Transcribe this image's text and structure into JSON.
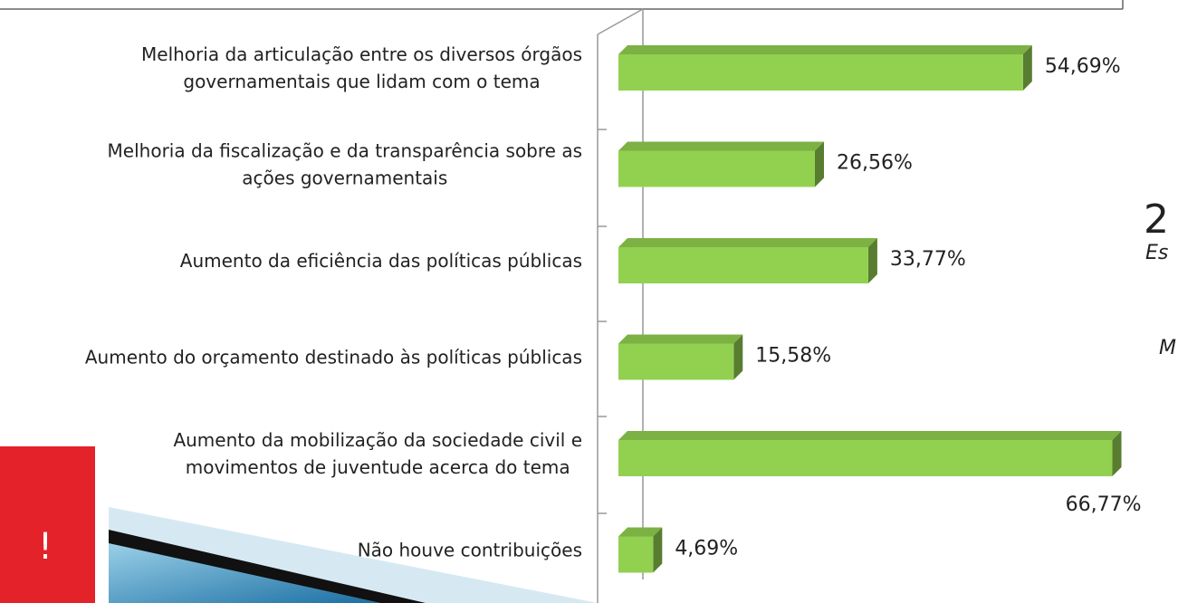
{
  "chart_data": {
    "type": "bar",
    "orientation": "horizontal",
    "categories": [
      "Melhoria da articulação entre os diversos órgãos\ngovernamentais que lidam com o tema",
      "Melhoria da fiscalização e da transparência sobre as\nações governamentais",
      "Aumento da eficiência das políticas públicas",
      "Aumento do orçamento destinado às políticas públicas",
      "Aumento da mobilização da sociedade civil e\nmovimentos de juventude acerca do tema",
      "Não houve contribuições"
    ],
    "values": [
      54.69,
      26.56,
      33.77,
      15.58,
      66.77,
      4.69
    ],
    "value_labels": [
      "54,69%",
      "26,56%",
      "33,77%",
      "15,58%",
      "66,77%",
      "4,69%"
    ],
    "color": "#92d050",
    "annotations": [
      "2",
      "Es",
      "M",
      "!"
    ]
  }
}
